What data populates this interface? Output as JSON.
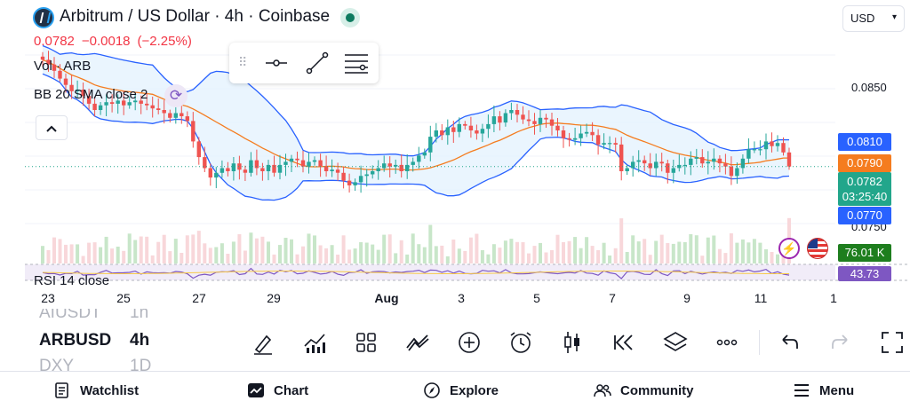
{
  "header": {
    "symbol_title": "Arbitrum / US Dollar · 4h · Coinbase",
    "last_price": "0.0782",
    "change": "−0.0018",
    "change_percent": "(−2.25%)"
  },
  "indicators": {
    "volume_label": "Vol · ARB",
    "bb_label": "BB 20 SMA close 2",
    "rsi_label": "RSI 14 close"
  },
  "currency_select": {
    "value": "USD"
  },
  "price_axis": {
    "ticks": [
      "0.0850",
      "0.0750"
    ]
  },
  "price_tags": {
    "bb_upper": "0.0810",
    "bb_basis": "0.0790",
    "last_price": "0.0782",
    "countdown": "03:25:40",
    "bb_lower": "0.0770",
    "volume": "76.01 K",
    "rsi": "43.73"
  },
  "time_axis": {
    "labels": [
      {
        "text": "23",
        "bold": false
      },
      {
        "text": "25",
        "bold": false
      },
      {
        "text": "27",
        "bold": false
      },
      {
        "text": "29",
        "bold": false
      },
      {
        "text": "Aug",
        "bold": true
      },
      {
        "text": "3",
        "bold": false
      },
      {
        "text": "5",
        "bold": false
      },
      {
        "text": "7",
        "bold": false
      },
      {
        "text": "9",
        "bold": false
      },
      {
        "text": "11",
        "bold": false
      },
      {
        "text": "1",
        "bold": false
      }
    ]
  },
  "symbol_switcher": {
    "prev": {
      "symbol": "AIUSDT",
      "interval": "1h"
    },
    "current": {
      "symbol": "ARBUSD",
      "interval": "4h"
    },
    "next": {
      "symbol": "DXY",
      "interval": "1D"
    }
  },
  "bottom_toolbar": {
    "icons": [
      "brush-icon",
      "indicators-icon",
      "layout-icon",
      "trend-icon",
      "add-icon",
      "alarm-icon",
      "candles-icon",
      "replay-icon",
      "layers-icon",
      "more-icon",
      "undo-icon",
      "redo-icon",
      "fullscreen-icon"
    ]
  },
  "bottom_nav": {
    "items": [
      {
        "label": "Watchlist",
        "icon": "watchlist-icon"
      },
      {
        "label": "Chart",
        "icon": "chart-icon"
      },
      {
        "label": "Explore",
        "icon": "compass-icon"
      },
      {
        "label": "Community",
        "icon": "community-icon"
      },
      {
        "label": "Menu",
        "icon": "menu-icon"
      }
    ]
  },
  "colors": {
    "up": "#26a69a",
    "down": "#ef5350",
    "bb_band": "#2962ff",
    "bb_basis": "#f57c1f",
    "bb_fill": "#e3f2fd",
    "rsi": "#7e57c2",
    "accent_red": "#f23645"
  },
  "chart_data": {
    "type": "candlestick",
    "title": "Arbitrum / US Dollar · 4h · Coinbase",
    "y_range": [
      0.074,
      0.087
    ],
    "closes": [
      0.085,
      0.0847,
      0.0843,
      0.0838,
      0.0834,
      0.083,
      0.0831,
      0.0827,
      0.0822,
      0.0818,
      0.0821,
      0.0823,
      0.0822,
      0.0824,
      0.0821,
      0.0823,
      0.0824,
      0.0822,
      0.0821,
      0.0819,
      0.0818,
      0.0816,
      0.0813,
      0.0816,
      0.0814,
      0.0811,
      0.0798,
      0.0788,
      0.0781,
      0.0775,
      0.0778,
      0.0781,
      0.0779,
      0.0784,
      0.078,
      0.0778,
      0.0786,
      0.0781,
      0.0779,
      0.0783,
      0.0778,
      0.0783,
      0.0785,
      0.0787,
      0.0786,
      0.0782,
      0.0785,
      0.0786,
      0.0782,
      0.0779,
      0.078,
      0.0778,
      0.0773,
      0.077,
      0.0772,
      0.0776,
      0.0777,
      0.0779,
      0.0781,
      0.0784,
      0.0782,
      0.0783,
      0.0779,
      0.0783,
      0.0785,
      0.0789,
      0.0791,
      0.0801,
      0.0805,
      0.0802,
      0.0807,
      0.0804,
      0.0809,
      0.0808,
      0.0805,
      0.0803,
      0.0806,
      0.0809,
      0.0814,
      0.081,
      0.0816,
      0.0818,
      0.0815,
      0.0812,
      0.0811,
      0.0809,
      0.0813,
      0.0812,
      0.0808,
      0.0805,
      0.08,
      0.0799,
      0.08,
      0.0803,
      0.0804,
      0.0802,
      0.0796,
      0.0797,
      0.0797,
      0.0796,
      0.0779,
      0.0781,
      0.0785,
      0.0786,
      0.0784,
      0.0781,
      0.0785,
      0.0784,
      0.0778,
      0.0781,
      0.0783,
      0.0783,
      0.0787,
      0.0788,
      0.0784,
      0.0785,
      0.0787,
      0.0784,
      0.0782,
      0.0776,
      0.0781,
      0.0787,
      0.0793,
      0.0793,
      0.0793,
      0.0798,
      0.0795,
      0.0797,
      0.0791,
      0.0782
    ],
    "volume_note": "volume histogram and RSI 14 drawn as sub-panes"
  }
}
